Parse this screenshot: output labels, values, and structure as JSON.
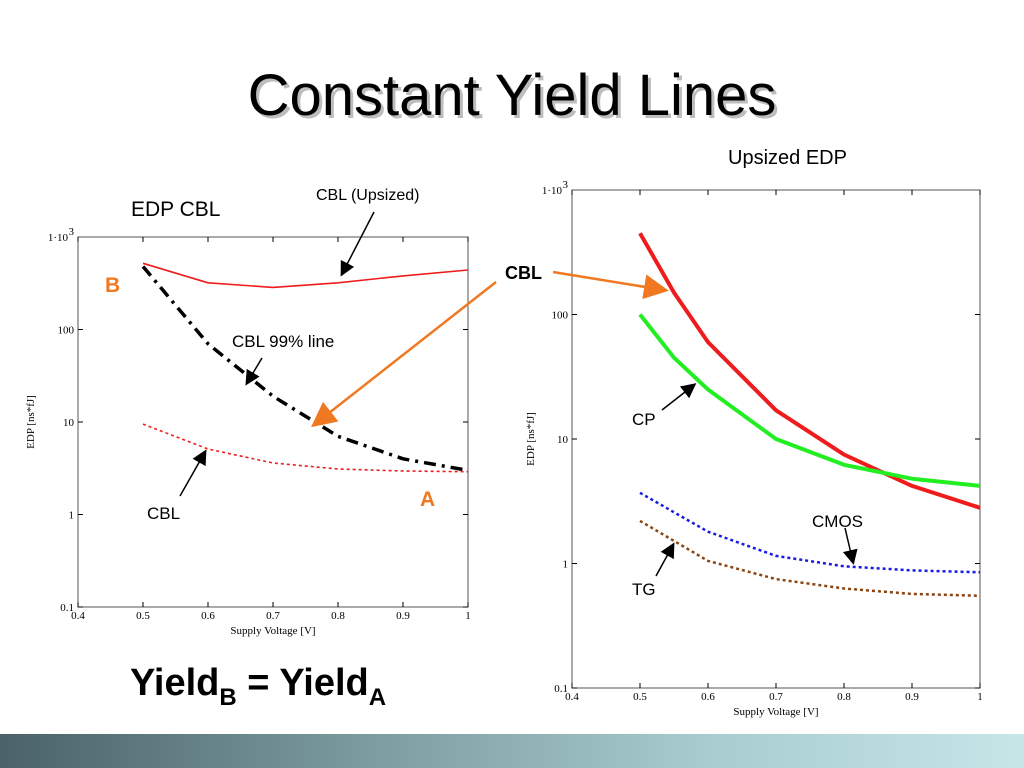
{
  "slide": {
    "title": "Constant Yield Lines",
    "yield_text": "Yield",
    "yield_sub_b": "B",
    "yield_eq": " = Yield",
    "yield_sub_a": "A"
  },
  "colors": {
    "red": "#ee1c1c",
    "green": "#22ee22",
    "blue": "#1a1ae6",
    "brown": "#8b4513",
    "orange": "#f07820",
    "black": "#000000"
  },
  "left_annotations": {
    "heading": "EDP CBL",
    "cbl_upsized": "CBL (Upsized)",
    "cbl_99": "CBL 99% line",
    "cbl": "CBL",
    "point_b": "B",
    "point_a": "A"
  },
  "right_annotations": {
    "heading": "Upsized EDP",
    "cbl": "CBL",
    "cp": "CP",
    "cmos": "CMOS",
    "tg": "TG"
  },
  "chart_data": [
    {
      "type": "line",
      "title": "EDP CBL",
      "xlabel": "Supply Voltage [V]",
      "ylabel": "EDP [ns*fJ]",
      "xlim": [
        0.4,
        1.0
      ],
      "ylim": [
        0.1,
        1000
      ],
      "yscale": "log",
      "x_ticks": [
        "0.4",
        "0.5",
        "0.6",
        "0.7",
        "0.8",
        "0.9",
        "1"
      ],
      "y_ticks": [
        "0.1",
        "1",
        "10",
        "100"
      ],
      "y_top_tick": "1·10",
      "y_top_exp": "3",
      "series": [
        {
          "name": "CBL (Upsized)",
          "style": "solid",
          "color": "#ee1c1c",
          "x": [
            0.5,
            0.6,
            0.7,
            0.8,
            0.9,
            1.0
          ],
          "y": [
            520,
            320,
            285,
            320,
            380,
            440
          ]
        },
        {
          "name": "CBL 99% line",
          "style": "dashdot",
          "color": "#000000",
          "x": [
            0.5,
            0.6,
            0.7,
            0.8,
            0.9,
            1.0
          ],
          "y": [
            480,
            70,
            19,
            7,
            4,
            3
          ]
        },
        {
          "name": "CBL",
          "style": "dotted",
          "color": "#ee1c1c",
          "x": [
            0.5,
            0.6,
            0.7,
            0.8,
            0.9,
            1.0
          ],
          "y": [
            9.5,
            5.1,
            3.6,
            3.1,
            2.95,
            2.9
          ]
        }
      ]
    },
    {
      "type": "line",
      "title": "Upsized EDP",
      "xlabel": "Supply Voltage [V]",
      "ylabel": "EDP [ns*fJ]",
      "xlim": [
        0.4,
        1.0
      ],
      "ylim": [
        0.1,
        1000
      ],
      "yscale": "log",
      "x_ticks": [
        "0.4",
        "0.5",
        "0.6",
        "0.7",
        "0.8",
        "0.9",
        "1"
      ],
      "y_ticks": [
        "0.1",
        "1",
        "10",
        "100"
      ],
      "y_top_tick": "1·10",
      "y_top_exp": "3",
      "series": [
        {
          "name": "CBL",
          "style": "solid",
          "color": "#ee1c1c",
          "x": [
            0.5,
            0.55,
            0.6,
            0.7,
            0.8,
            0.9,
            1.0
          ],
          "y": [
            450,
            150,
            60,
            17,
            7.5,
            4.2,
            2.8
          ]
        },
        {
          "name": "CP",
          "style": "solid",
          "color": "#22ee22",
          "x": [
            0.5,
            0.55,
            0.6,
            0.7,
            0.8,
            0.9,
            1.0
          ],
          "y": [
            100,
            45,
            25,
            10,
            6.2,
            4.8,
            4.2
          ]
        },
        {
          "name": "CMOS",
          "style": "dotted",
          "color": "#1a1ae6",
          "x": [
            0.5,
            0.6,
            0.7,
            0.8,
            0.9,
            1.0
          ],
          "y": [
            3.7,
            1.8,
            1.15,
            0.95,
            0.88,
            0.85
          ]
        },
        {
          "name": "TG",
          "style": "dotted",
          "color": "#8b4513",
          "x": [
            0.5,
            0.6,
            0.7,
            0.8,
            0.9,
            1.0
          ],
          "y": [
            2.2,
            1.05,
            0.75,
            0.63,
            0.57,
            0.55
          ]
        }
      ]
    }
  ]
}
